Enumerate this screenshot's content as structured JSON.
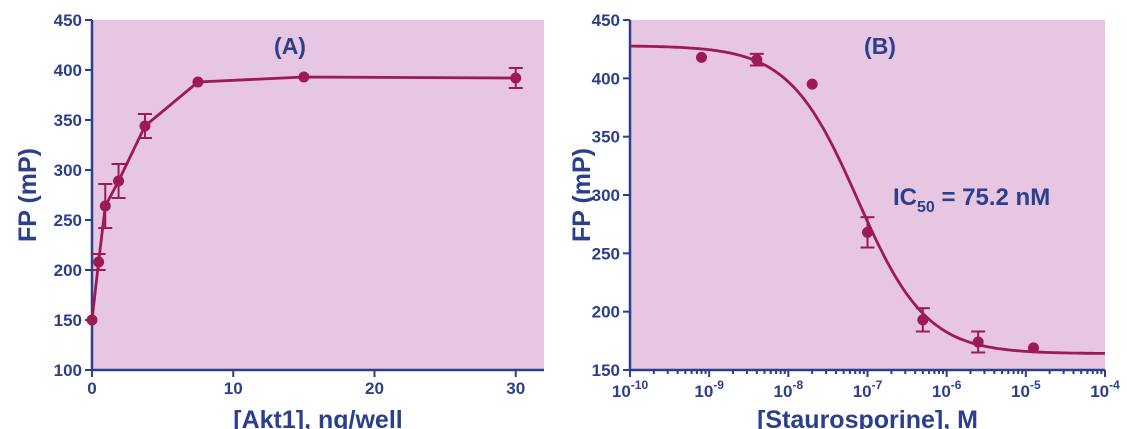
{
  "chart_data": [
    {
      "type": "line",
      "panel_label": "(A)",
      "xlabel": "[Akt1], ng/well",
      "ylabel": "FP (mP)",
      "xlim": [
        0,
        32
      ],
      "ylim": [
        100,
        450
      ],
      "xticks": [
        0,
        10,
        20,
        30
      ],
      "yticks": [
        100,
        150,
        200,
        250,
        300,
        350,
        400,
        450
      ],
      "grid": false,
      "series": [
        {
          "x": [
            0,
            0.47,
            0.94,
            1.88,
            3.75,
            7.5,
            15,
            30
          ],
          "y": [
            150,
            208,
            264,
            289,
            344,
            388,
            393,
            392
          ],
          "err": [
            0,
            8,
            22,
            17,
            12,
            0,
            0,
            10
          ]
        }
      ],
      "colors": {
        "plot_bg": "#e6c6e0",
        "series": "#9b1b52",
        "axis": "#2b3f8c"
      }
    },
    {
      "type": "line",
      "panel_label": "(B)",
      "xlabel": "[Staurosporine], M",
      "ylabel": "FP (mP)",
      "xscale": "log",
      "xlim": [
        1e-10,
        0.0001
      ],
      "ylim": [
        150,
        450
      ],
      "xticks": [
        1e-10,
        1e-09,
        1e-08,
        1e-07,
        1e-06,
        1e-05,
        0.0001
      ],
      "xtick_labels": [
        {
          "base": "10",
          "exp": "-10"
        },
        {
          "base": "10",
          "exp": "-9"
        },
        {
          "base": "10",
          "exp": "-8"
        },
        {
          "base": "10",
          "exp": "-7"
        },
        {
          "base": "10",
          "exp": "-6"
        },
        {
          "base": "10",
          "exp": "-5"
        },
        {
          "base": "10",
          "exp": "-4"
        }
      ],
      "yticks": [
        150,
        200,
        250,
        300,
        350,
        400,
        450
      ],
      "grid": false,
      "series": [
        {
          "x": [
            8e-10,
            4e-09,
            2e-08,
            1e-07,
            5e-07,
            2.5e-06,
            1.25e-05
          ],
          "y": [
            418,
            416,
            395,
            268,
            193,
            174,
            169
          ],
          "err": [
            0,
            5,
            0,
            13,
            10,
            9,
            0
          ],
          "fit": {
            "bottom": 164,
            "top": 428,
            "ic50": 7.52e-08,
            "hill": 1.0
          }
        }
      ],
      "annotations": [
        {
          "pre": "IC",
          "sub": "50",
          "post": " = 75.2 nM"
        }
      ],
      "colors": {
        "plot_bg": "#e6c6e0",
        "series": "#9b1b52",
        "axis": "#2b3f8c"
      }
    }
  ]
}
